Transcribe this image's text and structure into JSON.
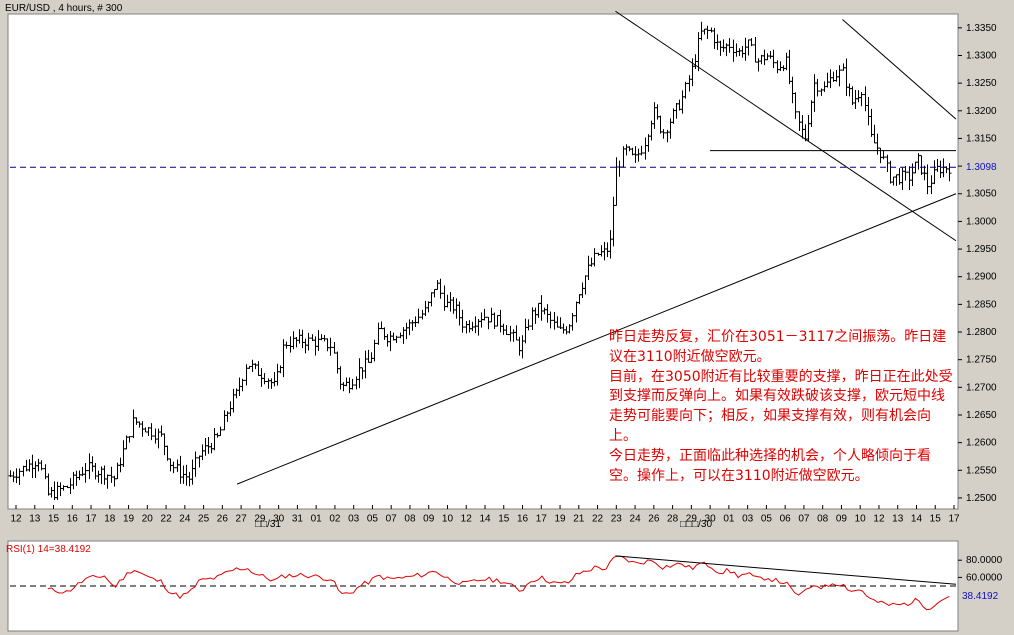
{
  "chart_data": [
    {
      "type": "ohlc-bar",
      "title": "EUR/USD , 4 hours, # 300",
      "ylim": [
        1.248,
        1.3375
      ],
      "y_ticks": [
        "1.3350",
        "1.3300",
        "1.3250",
        "1.3200",
        "1.3150",
        "1.3100",
        "1.3050",
        "1.3000",
        "1.2950",
        "1.2900",
        "1.2850",
        "1.2800",
        "1.2750",
        "1.2700",
        "1.2650",
        "1.2600",
        "1.2550",
        "1.2500"
      ],
      "x_ticks": [
        "12",
        "13",
        "15",
        "16",
        "17",
        "18",
        "19",
        "20",
        "22",
        "24",
        "25",
        "26",
        "27",
        "29",
        "30",
        "31",
        "01",
        "02",
        "03",
        "05",
        "07",
        "08",
        "09",
        "10",
        "12",
        "14",
        "15",
        "16",
        "17",
        "19",
        "21",
        "22",
        "23",
        "24",
        "26",
        "28",
        "29",
        "30",
        "01",
        "03",
        "05",
        "06",
        "07",
        "08",
        "09",
        "10",
        "12",
        "13",
        "14",
        "15",
        "17"
      ],
      "period_labels": [
        "□□/31",
        "□□□/30"
      ],
      "current_price": "1.3098",
      "annotation": [
        "昨日走势反复，汇价在3051－3117之间振荡。昨日建议在3110附近做空欧元。",
        "目前，在3050附近有比较重要的支撑，昨日正在此处受到支撑而反弹向上。如果有效跌破该支撑，欧元短中线走势可能要向下；相反，如果支撑有效，则有机会向上。",
        "今日走势，正面临此种选择的机会，个人略倾向于看空。操作上，可以在3110附近做空欧元。"
      ],
      "trendlines": [
        {
          "name": "support",
          "from": [
            24,
            1.2525
          ],
          "to": [
            100,
            1.305
          ]
        },
        {
          "name": "upper-channel",
          "from": [
            64,
            1.338
          ],
          "to": [
            100,
            1.2965
          ]
        },
        {
          "name": "resistance-short",
          "from": [
            88,
            1.3365
          ],
          "to": [
            100,
            1.3185
          ]
        },
        {
          "name": "horizontal",
          "from": [
            74,
            1.3128
          ],
          "to": [
            100,
            1.3128
          ]
        }
      ],
      "anchors": [
        [
          0,
          1.254
        ],
        [
          2,
          1.256
        ],
        [
          3,
          1.257
        ],
        [
          4,
          1.2505
        ],
        [
          6,
          1.252
        ],
        [
          8,
          1.2555
        ],
        [
          10,
          1.2545
        ],
        [
          11,
          1.2535
        ],
        [
          13,
          1.264
        ],
        [
          15,
          1.262
        ],
        [
          16,
          1.261
        ],
        [
          17,
          1.256
        ],
        [
          18,
          1.2545
        ],
        [
          19,
          1.2535
        ],
        [
          20,
          1.258
        ],
        [
          22,
          1.261
        ],
        [
          23,
          1.266
        ],
        [
          24,
          1.269
        ],
        [
          25,
          1.2745
        ],
        [
          26,
          1.273
        ],
        [
          27,
          1.272
        ],
        [
          28,
          1.27
        ],
        [
          29,
          1.278
        ],
        [
          31,
          1.2785
        ],
        [
          33,
          1.278
        ],
        [
          34,
          1.2775
        ],
        [
          35,
          1.27
        ],
        [
          36,
          1.271
        ],
        [
          37,
          1.2735
        ],
        [
          38,
          1.2745
        ],
        [
          39,
          1.2805
        ],
        [
          40,
          1.279
        ],
        [
          42,
          1.281
        ],
        [
          44,
          1.284
        ],
        [
          45,
          1.289
        ],
        [
          46,
          1.285
        ],
        [
          47,
          1.2845
        ],
        [
          48,
          1.281
        ],
        [
          50,
          1.283
        ],
        [
          52,
          1.2815
        ],
        [
          54,
          1.277
        ],
        [
          55,
          1.283
        ],
        [
          56,
          1.2845
        ],
        [
          58,
          1.28
        ],
        [
          59,
          1.281
        ],
        [
          60,
          1.287
        ],
        [
          61,
          1.291
        ],
        [
          62,
          1.294
        ],
        [
          63,
          1.2945
        ],
        [
          63.5,
          1.2965
        ],
        [
          64,
          1.309
        ],
        [
          65,
          1.313
        ],
        [
          66,
          1.311
        ],
        [
          67,
          1.314
        ],
        [
          68,
          1.32
        ],
        [
          69,
          1.316
        ],
        [
          70,
          1.319
        ],
        [
          71,
          1.322
        ],
        [
          72,
          1.327
        ],
        [
          73,
          1.334
        ],
        [
          74,
          1.3345
        ],
        [
          75,
          1.331
        ],
        [
          76,
          1.332
        ],
        [
          77,
          1.3305
        ],
        [
          78,
          1.332
        ],
        [
          79,
          1.329
        ],
        [
          80,
          1.33
        ],
        [
          81,
          1.328
        ],
        [
          82,
          1.329
        ],
        [
          83,
          1.319
        ],
        [
          84,
          1.315
        ],
        [
          85,
          1.325
        ],
        [
          86,
          1.324
        ],
        [
          87,
          1.3265
        ],
        [
          88,
          1.327
        ],
        [
          89,
          1.3215
        ],
        [
          90,
          1.324
        ],
        [
          91,
          1.315
        ],
        [
          92,
          1.3125
        ],
        [
          93,
          1.308
        ],
        [
          94,
          1.308
        ],
        [
          95,
          1.308
        ],
        [
          96,
          1.311
        ],
        [
          97,
          1.3065
        ],
        [
          98,
          1.3095
        ],
        [
          99,
          1.3098
        ]
      ]
    },
    {
      "type": "line",
      "title": "RSI(1) 14=38.4192",
      "ylim": [
        0,
        100
      ],
      "y_ticks": [
        "80.0000",
        "60.0000"
      ],
      "current_value": "38.4192",
      "dashed_level": 50,
      "trendline": {
        "from": [
          64,
          85
        ],
        "to": [
          100,
          52
        ]
      },
      "anchors": [
        [
          4,
          46
        ],
        [
          6,
          43
        ],
        [
          8,
          58
        ],
        [
          10,
          62
        ],
        [
          11,
          48
        ],
        [
          12,
          60
        ],
        [
          13,
          70
        ],
        [
          15,
          58
        ],
        [
          16,
          55
        ],
        [
          17,
          42
        ],
        [
          18,
          38
        ],
        [
          19,
          42
        ],
        [
          20,
          56
        ],
        [
          22,
          60
        ],
        [
          23,
          66
        ],
        [
          24,
          70
        ],
        [
          25,
          71
        ],
        [
          26,
          64
        ],
        [
          27,
          60
        ],
        [
          28,
          56
        ],
        [
          29,
          62
        ],
        [
          31,
          63
        ],
        [
          33,
          60
        ],
        [
          34,
          58
        ],
        [
          35,
          40
        ],
        [
          36,
          42
        ],
        [
          37,
          50
        ],
        [
          38,
          55
        ],
        [
          39,
          62
        ],
        [
          40,
          58
        ],
        [
          42,
          60
        ],
        [
          44,
          64
        ],
        [
          45,
          68
        ],
        [
          46,
          60
        ],
        [
          47,
          56
        ],
        [
          48,
          52
        ],
        [
          50,
          58
        ],
        [
          52,
          56
        ],
        [
          54,
          44
        ],
        [
          55,
          56
        ],
        [
          56,
          60
        ],
        [
          58,
          52
        ],
        [
          59,
          54
        ],
        [
          60,
          64
        ],
        [
          61,
          68
        ],
        [
          62,
          72
        ],
        [
          63,
          70
        ],
        [
          64,
          84
        ],
        [
          65,
          82
        ],
        [
          66,
          76
        ],
        [
          67,
          78
        ],
        [
          68,
          80
        ],
        [
          69,
          72
        ],
        [
          70,
          74
        ],
        [
          71,
          76
        ],
        [
          72,
          70
        ],
        [
          73,
          76
        ],
        [
          74,
          74
        ],
        [
          75,
          66
        ],
        [
          76,
          68
        ],
        [
          77,
          62
        ],
        [
          78,
          64
        ],
        [
          79,
          58
        ],
        [
          80,
          60
        ],
        [
          81,
          56
        ],
        [
          82,
          54
        ],
        [
          83,
          40
        ],
        [
          84,
          42
        ],
        [
          85,
          52
        ],
        [
          86,
          48
        ],
        [
          87,
          54
        ],
        [
          88,
          52
        ],
        [
          89,
          44
        ],
        [
          90,
          46
        ],
        [
          91,
          34
        ],
        [
          92,
          30
        ],
        [
          93,
          28
        ],
        [
          94,
          28
        ],
        [
          95,
          30
        ],
        [
          96,
          34
        ],
        [
          97,
          24
        ],
        [
          98,
          30
        ],
        [
          99,
          38
        ]
      ]
    }
  ]
}
